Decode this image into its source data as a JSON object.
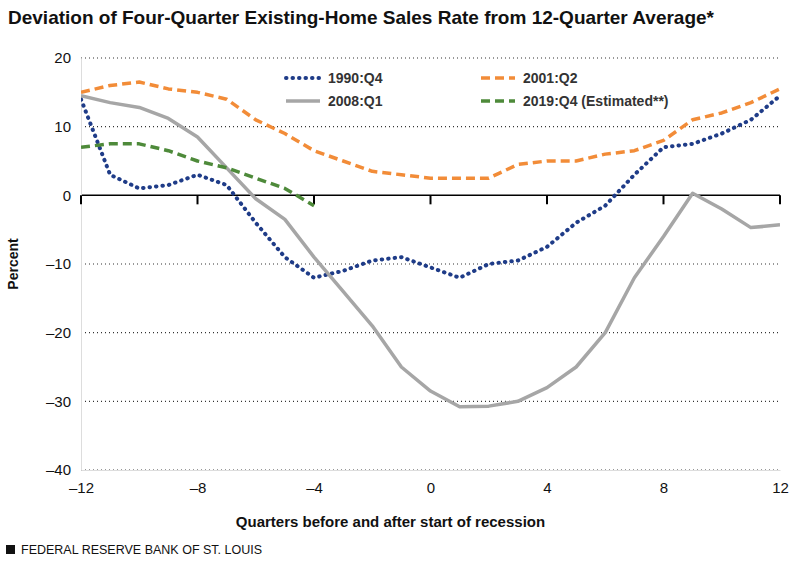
{
  "chart_data": {
    "type": "line",
    "title": "Deviation of Four-Quarter Existing-Home Sales Rate from 12-Quarter Average*",
    "x_label": "Quarters before and after start of recession",
    "y_label": "Percent",
    "footer": "FEDERAL RESERVE BANK OF ST. LOUIS",
    "x": [
      -12,
      -11,
      -10,
      -9,
      -8,
      -7,
      -6,
      -5,
      -4,
      -3,
      -2,
      -1,
      0,
      1,
      2,
      3,
      4,
      5,
      6,
      7,
      8,
      9,
      10,
      11,
      12
    ],
    "series": [
      {
        "name": "1990:Q4",
        "color": "#1f3c88",
        "line_style": "dotted",
        "values": [
          14,
          3,
          1,
          1.5,
          3,
          1.5,
          -4,
          -9,
          -12,
          -11,
          -9.5,
          -9,
          -10.5,
          -12,
          -10,
          -9.5,
          -7.5,
          -4,
          -1.5,
          3,
          7,
          7.5,
          9,
          11,
          14.5
        ]
      },
      {
        "name": "2001:Q2",
        "color": "#f28c38",
        "line_style": "dashed",
        "values": [
          15,
          16,
          16.5,
          15.5,
          15,
          14,
          11,
          9,
          6.5,
          5,
          3.5,
          3,
          2.5,
          2.5,
          2.5,
          4.5,
          5,
          5,
          6,
          6.5,
          8,
          11,
          12,
          13.5,
          15.5
        ]
      },
      {
        "name": "2008:Q1",
        "color": "#a6a6a6",
        "line_style": "solid",
        "values": [
          14.5,
          13.5,
          12.8,
          11.2,
          8.5,
          4,
          -0.5,
          -3.5,
          -9,
          -14,
          -19,
          -25,
          -28.5,
          -30.8,
          -30.7,
          -30,
          -28,
          -25,
          -20,
          -12,
          -6,
          0.3,
          -2,
          -4.7,
          -4.3
        ]
      },
      {
        "name": "2019:Q4 (Estimated**)",
        "color": "#4e8a3a",
        "line_style": "dashed",
        "values": [
          7,
          7.5,
          7.5,
          6.5,
          5,
          4,
          2.5,
          1,
          -1.5,
          null,
          null,
          null,
          null,
          null,
          null,
          null,
          null,
          null,
          null,
          null,
          null,
          null,
          null,
          null,
          null
        ]
      }
    ],
    "xlim": [
      -12,
      12
    ],
    "xticks": [
      {
        "value": -12,
        "label": "–12"
      },
      {
        "value": -8,
        "label": "–8"
      },
      {
        "value": -4,
        "label": "–4"
      },
      0,
      4,
      8,
      12
    ],
    "ylim": [
      -40,
      20
    ],
    "yticks": [
      {
        "value": -40,
        "label": "–40"
      },
      {
        "value": -30,
        "label": "–30"
      },
      {
        "value": -20,
        "label": "–20"
      },
      {
        "value": -10,
        "label": "–10"
      },
      0,
      10,
      20
    ],
    "grid": true,
    "legend": "top"
  }
}
